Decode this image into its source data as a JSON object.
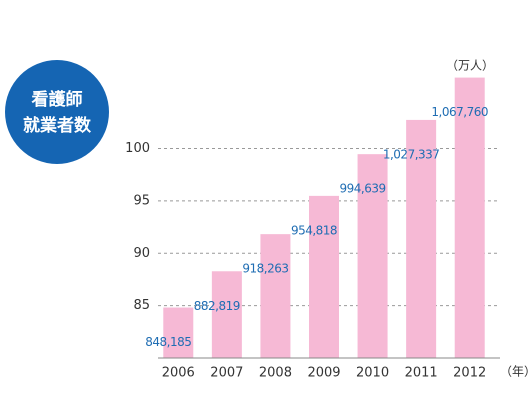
{
  "chart_data": {
    "type": "bar",
    "title_lines": [
      "看護師",
      "就業者数"
    ],
    "y_unit": "（万人）",
    "x_unit": "（年）",
    "categories": [
      "2006",
      "2007",
      "2008",
      "2009",
      "2010",
      "2011",
      "2012"
    ],
    "values": [
      84.8185,
      88.2819,
      91.8263,
      95.4818,
      99.4639,
      102.7337,
      106.776
    ],
    "value_labels": [
      "848,185",
      "882,819",
      "918,263",
      "954,818",
      "994,639",
      "1,027,337",
      "1,067,760"
    ],
    "color": "#f6b9d5",
    "badge_color": "#1565b3",
    "label_color": "#1f6db3",
    "ylim": [
      80,
      107.5
    ],
    "yticks": [
      85,
      90,
      95,
      100
    ],
    "grid": true
  }
}
